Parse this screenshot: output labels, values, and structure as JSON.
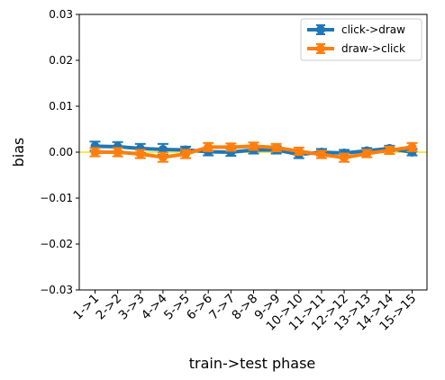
{
  "chart_data": {
    "type": "line",
    "xlabel": "train->test phase",
    "ylabel": "bias",
    "categories": [
      "1->1",
      "2->2",
      "3->3",
      "4->4",
      "5->5",
      "6->6",
      "7->7",
      "8->8",
      "9->9",
      "10->10",
      "11->11",
      "12->12",
      "13->13",
      "14->14",
      "15->15"
    ],
    "ylim": [
      -0.03,
      0.03
    ],
    "yticks": [
      0.03,
      0.02,
      0.01,
      0.0,
      -0.01,
      -0.02,
      -0.03
    ],
    "ytick_labels": [
      "0.03",
      "0.02",
      "0.01",
      "0.00",
      "−0.01",
      "−0.02",
      "−0.03"
    ],
    "reference_line": {
      "y": 0.0,
      "color": "#f2e01a"
    },
    "grid": false,
    "legend_position": "top-right",
    "series": [
      {
        "name": "click->draw",
        "color": "#1f77b4",
        "values": [
          0.0013,
          0.0012,
          0.0008,
          0.0006,
          0.0005,
          0.0001,
          0.0,
          0.0005,
          0.0005,
          -0.0005,
          0.0,
          -0.0002,
          0.0003,
          0.0008,
          0.0
        ],
        "errors": [
          0.001,
          0.001,
          0.001,
          0.0012,
          0.0007,
          0.0008,
          0.0008,
          0.0008,
          0.0008,
          0.0008,
          0.0007,
          0.0007,
          0.0006,
          0.0006,
          0.0007
        ]
      },
      {
        "name": "draw->click",
        "color": "#ff7f0e",
        "values": [
          0.0,
          0.0,
          -0.0004,
          -0.0011,
          -0.0004,
          0.0011,
          0.0011,
          0.0013,
          0.001,
          0.0002,
          -0.0005,
          -0.0012,
          -0.0003,
          0.0004,
          0.0011
        ],
        "errors": [
          0.0009,
          0.0009,
          0.0009,
          0.001,
          0.0009,
          0.0009,
          0.0008,
          0.0008,
          0.0008,
          0.0008,
          0.0008,
          0.0009,
          0.0008,
          0.0008,
          0.0009
        ]
      }
    ]
  }
}
